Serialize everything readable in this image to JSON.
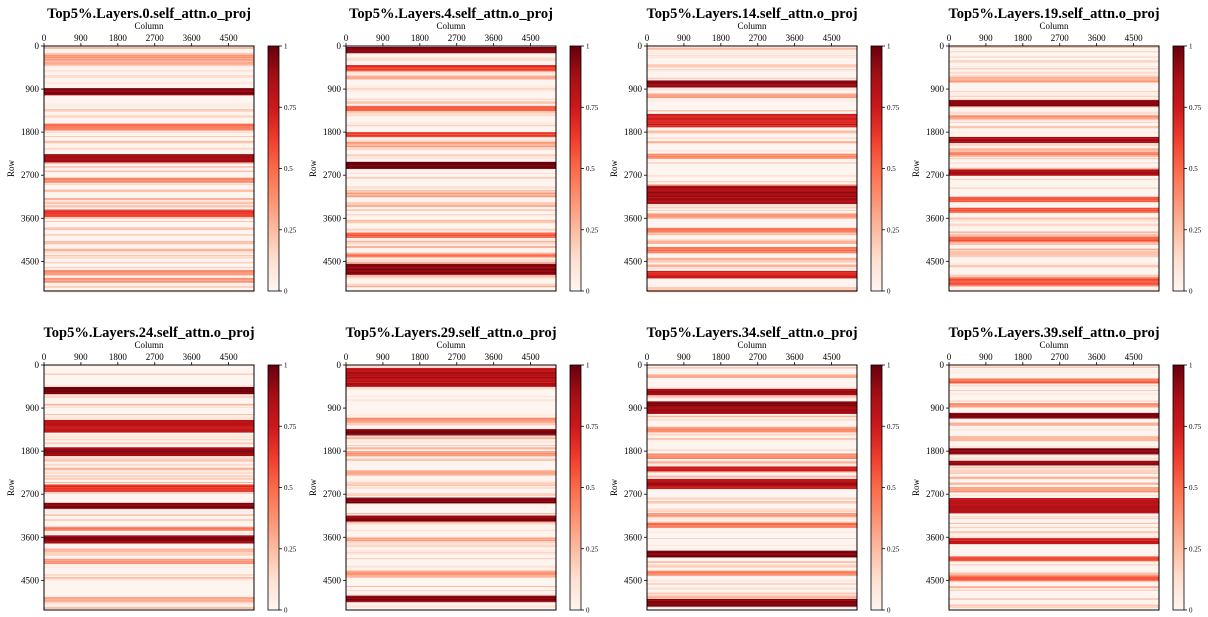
{
  "figure": {
    "colorscale": [
      "#fff5f0",
      "#fee0d2",
      "#fcbba1",
      "#fc9272",
      "#fb6a4a",
      "#ef3b2c",
      "#cb181d",
      "#a50f15",
      "#67000d"
    ]
  },
  "chart_data": [
    {
      "type": "heatmap",
      "title": "Top5%.Layers.0.self_attn.o_proj",
      "xlabel": "Column",
      "ylabel": "Row",
      "xticks": [
        0,
        900,
        1800,
        2700,
        3600,
        4500
      ],
      "yticks": [
        0,
        900,
        1800,
        2700,
        3600,
        4500
      ],
      "xlim": [
        0,
        5120
      ],
      "ylim": [
        0,
        5120
      ],
      "colorbar": {
        "ticks": [
          0,
          0.25,
          0.5,
          0.75,
          1
        ],
        "tick_labels": [
          "0",
          "0.25",
          "0.5",
          "0.75",
          "1"
        ]
      },
      "bands": [
        [
          880,
          1020,
          0.95
        ],
        [
          2260,
          2420,
          0.9
        ],
        [
          3420,
          3560,
          0.6
        ],
        [
          180,
          300,
          0.35
        ],
        [
          1620,
          1760,
          0.4
        ],
        [
          2750,
          2850,
          0.35
        ],
        [
          4680,
          4780,
          0.35
        ],
        [
          4850,
          4950,
          0.35
        ]
      ]
    },
    {
      "type": "heatmap",
      "title": "Top5%.Layers.4.self_attn.o_proj",
      "xlabel": "Column",
      "ylabel": "Row",
      "xticks": [
        0,
        900,
        1800,
        2700,
        3600,
        4500
      ],
      "yticks": [
        0,
        900,
        1800,
        2700,
        3600,
        4500
      ],
      "xlim": [
        0,
        5120
      ],
      "ylim": [
        0,
        5120
      ],
      "colorbar": {
        "ticks": [
          0,
          0.25,
          0.5,
          0.75,
          1
        ],
        "tick_labels": [
          "0",
          "0.25",
          "0.5",
          "0.75",
          "1"
        ]
      },
      "bands": [
        [
          20,
          140,
          0.95
        ],
        [
          2420,
          2560,
          1.0
        ],
        [
          4550,
          4780,
          0.95
        ],
        [
          400,
          520,
          0.65
        ],
        [
          1800,
          1900,
          0.6
        ],
        [
          1250,
          1350,
          0.5
        ],
        [
          3900,
          4000,
          0.5
        ],
        [
          4340,
          4420,
          0.45
        ],
        [
          2000,
          2100,
          0.3
        ],
        [
          3050,
          3150,
          0.3
        ]
      ]
    },
    {
      "type": "heatmap",
      "title": "Top5%.Layers.14.self_attn.o_proj",
      "xlabel": "Column",
      "ylabel": "Row",
      "xticks": [
        0,
        900,
        1800,
        2700,
        3600,
        4500
      ],
      "yticks": [
        0,
        900,
        1800,
        2700,
        3600,
        4500
      ],
      "xlim": [
        0,
        5120
      ],
      "ylim": [
        0,
        5120
      ],
      "colorbar": {
        "ticks": [
          0,
          0.25,
          0.5,
          0.75,
          1
        ],
        "tick_labels": [
          "0",
          "0.25",
          "0.5",
          "0.75",
          "1"
        ]
      },
      "bands": [
        [
          720,
          860,
          0.95
        ],
        [
          1420,
          1700,
          0.7
        ],
        [
          2920,
          3300,
          0.85
        ],
        [
          4700,
          4850,
          0.7
        ],
        [
          3800,
          3900,
          0.45
        ],
        [
          4200,
          4320,
          0.45
        ],
        [
          2250,
          2350,
          0.4
        ],
        [
          3500,
          3600,
          0.35
        ],
        [
          1000,
          1080,
          0.35
        ]
      ]
    },
    {
      "type": "heatmap",
      "title": "Top5%.Layers.19.self_attn.o_proj",
      "xlabel": "Column",
      "ylabel": "Row",
      "xticks": [
        0,
        900,
        1800,
        2700,
        3600,
        4500
      ],
      "yticks": [
        0,
        900,
        1800,
        2700,
        3600,
        4500
      ],
      "xlim": [
        0,
        5120
      ],
      "ylim": [
        0,
        5120
      ],
      "colorbar": {
        "ticks": [
          0,
          0.25,
          0.5,
          0.75,
          1
        ],
        "tick_labels": [
          "0",
          "0.25",
          "0.5",
          "0.75",
          "1"
        ]
      },
      "bands": [
        [
          1130,
          1260,
          0.95
        ],
        [
          1900,
          2020,
          0.85
        ],
        [
          2580,
          2700,
          0.85
        ],
        [
          3150,
          3250,
          0.55
        ],
        [
          3380,
          3480,
          0.55
        ],
        [
          3980,
          4100,
          0.5
        ],
        [
          4840,
          5000,
          0.55
        ],
        [
          1450,
          1530,
          0.35
        ],
        [
          2200,
          2300,
          0.35
        ],
        [
          650,
          760,
          0.3
        ]
      ]
    },
    {
      "type": "heatmap",
      "title": "Top5%.Layers.24.self_attn.o_proj",
      "xlabel": "Column",
      "ylabel": "Row",
      "xticks": [
        0,
        900,
        1800,
        2700,
        3600,
        4500
      ],
      "yticks": [
        0,
        900,
        1800,
        2700,
        3600,
        4500
      ],
      "xlim": [
        0,
        5120
      ],
      "ylim": [
        0,
        5120
      ],
      "colorbar": {
        "ticks": [
          0,
          0.25,
          0.5,
          0.75,
          1
        ],
        "tick_labels": [
          "0",
          "0.25",
          "0.5",
          "0.75",
          "1"
        ]
      },
      "bands": [
        [
          460,
          600,
          1.0
        ],
        [
          1150,
          1400,
          0.8
        ],
        [
          1720,
          1900,
          0.9
        ],
        [
          2500,
          2650,
          0.65
        ],
        [
          2880,
          3000,
          0.95
        ],
        [
          3560,
          3720,
          0.9
        ],
        [
          4850,
          4950,
          0.3
        ],
        [
          3380,
          3460,
          0.45
        ],
        [
          4050,
          4150,
          0.35
        ]
      ]
    },
    {
      "type": "heatmap",
      "title": "Top5%.Layers.29.self_attn.o_proj",
      "xlabel": "Column",
      "ylabel": "Row",
      "xticks": [
        0,
        900,
        1800,
        2700,
        3600,
        4500
      ],
      "yticks": [
        0,
        900,
        1800,
        2700,
        3600,
        4500
      ],
      "xlim": [
        0,
        5120
      ],
      "ylim": [
        0,
        5120
      ],
      "colorbar": {
        "ticks": [
          0,
          0.25,
          0.5,
          0.75,
          1
        ],
        "tick_labels": [
          "0",
          "0.25",
          "0.5",
          "0.75",
          "1"
        ]
      },
      "bands": [
        [
          60,
          460,
          0.8
        ],
        [
          1340,
          1460,
          0.95
        ],
        [
          2770,
          2880,
          0.95
        ],
        [
          3150,
          3260,
          0.95
        ],
        [
          4820,
          4950,
          0.95
        ],
        [
          1100,
          1200,
          0.35
        ],
        [
          1800,
          1900,
          0.35
        ],
        [
          2200,
          2300,
          0.3
        ],
        [
          4300,
          4400,
          0.35
        ],
        [
          3600,
          3680,
          0.3
        ]
      ]
    },
    {
      "type": "heatmap",
      "title": "Top5%.Layers.34.self_attn.o_proj",
      "xlabel": "Column",
      "ylabel": "Row",
      "xticks": [
        0,
        900,
        1800,
        2700,
        3600,
        4500
      ],
      "yticks": [
        0,
        900,
        1800,
        2700,
        3600,
        4500
      ],
      "xlim": [
        0,
        5120
      ],
      "ylim": [
        0,
        5120
      ],
      "colorbar": {
        "ticks": [
          0,
          0.25,
          0.5,
          0.75,
          1
        ],
        "tick_labels": [
          "0",
          "0.25",
          "0.5",
          "0.75",
          "1"
        ]
      },
      "bands": [
        [
          500,
          620,
          0.85
        ],
        [
          760,
          1020,
          0.9
        ],
        [
          2120,
          2220,
          0.75
        ],
        [
          2380,
          2580,
          0.8
        ],
        [
          3880,
          4020,
          0.95
        ],
        [
          4890,
          5050,
          0.95
        ],
        [
          1300,
          1400,
          0.4
        ],
        [
          1850,
          1950,
          0.4
        ],
        [
          3300,
          3400,
          0.45
        ],
        [
          4300,
          4400,
          0.4
        ],
        [
          3100,
          3180,
          0.3
        ]
      ]
    },
    {
      "type": "heatmap",
      "title": "Top5%.Layers.39.self_attn.o_proj",
      "xlabel": "Column",
      "ylabel": "Row",
      "xticks": [
        0,
        900,
        1800,
        2700,
        3600,
        4500
      ],
      "yticks": [
        0,
        900,
        1800,
        2700,
        3600,
        4500
      ],
      "xlim": [
        0,
        5120
      ],
      "ylim": [
        0,
        5120
      ],
      "colorbar": {
        "ticks": [
          0,
          0.25,
          0.5,
          0.75,
          1
        ],
        "tick_labels": [
          "0",
          "0.25",
          "0.5",
          "0.75",
          "1"
        ]
      },
      "bands": [
        [
          1000,
          1120,
          0.95
        ],
        [
          1740,
          1860,
          0.95
        ],
        [
          2000,
          2100,
          0.9
        ],
        [
          2780,
          3100,
          0.8
        ],
        [
          3620,
          3740,
          0.7
        ],
        [
          4000,
          4100,
          0.55
        ],
        [
          4400,
          4500,
          0.5
        ],
        [
          280,
          380,
          0.45
        ],
        [
          800,
          880,
          0.35
        ],
        [
          2550,
          2650,
          0.35
        ]
      ]
    }
  ]
}
